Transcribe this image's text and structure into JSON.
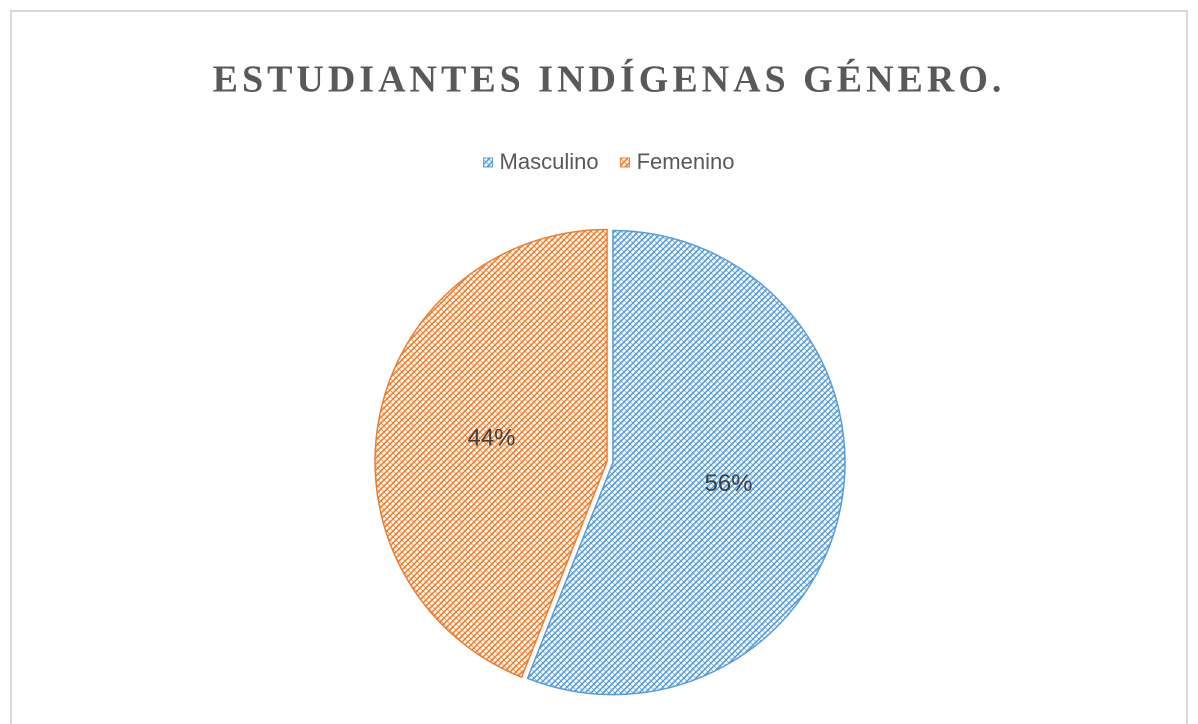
{
  "chart_data": {
    "type": "pie",
    "title": "ESTUDIANTES INDÍGENAS GÉNERO.",
    "categories": [
      "Masculino",
      "Femenino"
    ],
    "values": [
      56,
      44
    ],
    "value_labels": [
      "56%",
      "44%"
    ],
    "colors": [
      "#5b9bd5",
      "#ed7d31"
    ],
    "legend": "top"
  }
}
